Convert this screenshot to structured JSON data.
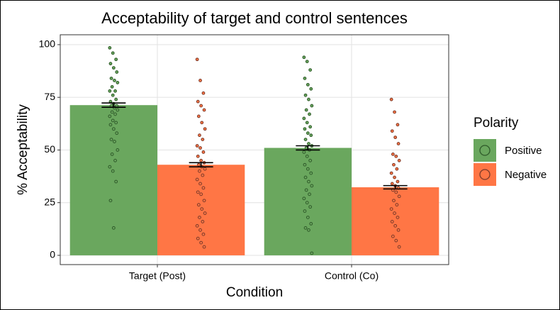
{
  "chart_data": {
    "type": "bar",
    "title": "Acceptability of target and control sentences",
    "x_label": "Condition",
    "y_label": "% Acceptability",
    "categories": [
      "Target (Post)",
      "Control (Co)"
    ],
    "legend_title": "Polarity",
    "legend_position": "right",
    "series": [
      {
        "name": "Positive",
        "color": "#6aa75e",
        "point_color": "#2f5a2a",
        "values": [
          71.3,
          51.0
        ],
        "errors": [
          1.0,
          1.0
        ],
        "points": [
          [
            98.5,
            96,
            93,
            91,
            89,
            87,
            84,
            83,
            82,
            80,
            78,
            78,
            76,
            74,
            73,
            72,
            71,
            71,
            70,
            69,
            68,
            67,
            66,
            64,
            63,
            62,
            60,
            58,
            55,
            54,
            50,
            48,
            45,
            42,
            40,
            35,
            26,
            13
          ],
          [
            94,
            92,
            88,
            84,
            81,
            79,
            76,
            74,
            71,
            69,
            67,
            65,
            63,
            61,
            60,
            58,
            57,
            55,
            53,
            52,
            51,
            50,
            49,
            47,
            45,
            43,
            41,
            39,
            37,
            35,
            33,
            31,
            29,
            27,
            25,
            23,
            21,
            18,
            15,
            13,
            12,
            1
          ]
        ]
      },
      {
        "name": "Negative",
        "color": "#ff7645",
        "point_color": "#7a3a2a",
        "values": [
          43.0,
          32.3
        ],
        "errors": [
          1.0,
          0.8
        ],
        "points": [
          [
            93,
            83,
            77,
            73,
            71,
            69,
            66,
            63,
            60,
            57,
            55,
            52,
            51,
            49,
            47,
            45,
            44,
            43,
            42,
            41,
            40,
            38,
            36,
            34,
            32,
            30,
            29,
            26,
            24,
            22,
            20,
            18,
            16,
            14,
            12,
            10,
            8,
            6,
            4
          ],
          [
            74,
            68,
            62,
            59,
            56,
            53,
            48,
            47,
            45,
            43,
            41,
            39,
            37,
            35,
            34,
            33,
            32,
            31,
            30,
            28,
            26,
            24,
            22,
            20,
            18,
            16,
            14,
            12,
            9,
            7,
            4
          ]
        ]
      }
    ],
    "ylim": [
      -4.4,
      104.7
    ],
    "yticks": [
      0,
      25,
      50,
      75,
      100
    ],
    "grid": true
  }
}
